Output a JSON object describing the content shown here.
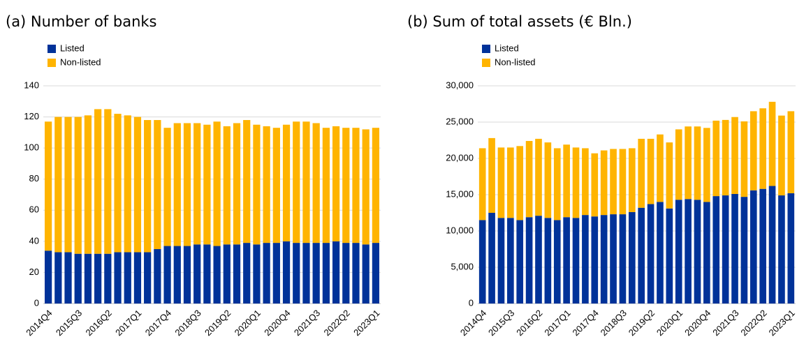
{
  "chart_data": [
    {
      "type": "stacked_bar",
      "title": "(a) Number of banks",
      "categories": [
        "2014Q4",
        null,
        null,
        "2015Q3",
        null,
        null,
        "2016Q2",
        null,
        null,
        "2017Q1",
        null,
        null,
        "2017Q4",
        null,
        null,
        "2018Q3",
        null,
        null,
        "2019Q2",
        null,
        null,
        "2020Q1",
        null,
        null,
        "2020Q4",
        null,
        null,
        "2021Q3",
        null,
        null,
        "2022Q2",
        null,
        null,
        "2023Q1"
      ],
      "series": [
        {
          "name": "Listed",
          "color": "#003299",
          "values": [
            34,
            33,
            33,
            32,
            32,
            32,
            32,
            33,
            33,
            33,
            33,
            35,
            37,
            37,
            37,
            38,
            38,
            37,
            38,
            38,
            39,
            38,
            39,
            39,
            40,
            39,
            39,
            39,
            39,
            40,
            39,
            39,
            38,
            39
          ]
        },
        {
          "name": "Non-listed",
          "color": "#ffb400",
          "values": [
            83,
            87,
            87,
            88,
            89,
            93,
            93,
            89,
            88,
            87,
            85,
            83,
            76,
            79,
            79,
            78,
            77,
            80,
            76,
            78,
            79,
            77,
            75,
            74,
            75,
            78,
            78,
            77,
            74,
            74,
            74,
            74,
            74,
            74
          ]
        }
      ],
      "ylim": [
        0,
        140
      ],
      "yticks": [
        0,
        20,
        40,
        60,
        80,
        100,
        120,
        140
      ],
      "grid": true
    },
    {
      "type": "stacked_bar",
      "title": "(b) Sum of total assets (€ Bln.)",
      "categories": [
        "2014Q4",
        null,
        null,
        "2015Q3",
        null,
        null,
        "2016Q2",
        null,
        null,
        "2017Q1",
        null,
        null,
        "2017Q4",
        null,
        null,
        "2018Q3",
        null,
        null,
        "2019Q2",
        null,
        null,
        "2020Q1",
        null,
        null,
        "2020Q4",
        null,
        null,
        "2021Q3",
        null,
        null,
        "2022Q2",
        null,
        null,
        "2023Q1"
      ],
      "series": [
        {
          "name": "Listed",
          "color": "#003299",
          "values": [
            11500,
            12500,
            11800,
            11800,
            11500,
            11900,
            12100,
            11800,
            11500,
            11900,
            11800,
            12200,
            12000,
            12200,
            12300,
            12300,
            12600,
            13200,
            13700,
            14000,
            13100,
            14300,
            14400,
            14300,
            14000,
            14800,
            14900,
            15100,
            14700,
            15600,
            15800,
            16200,
            14900,
            15200
          ]
        },
        {
          "name": "Non-listed",
          "color": "#ffb400",
          "values": [
            9900,
            10300,
            9700,
            9700,
            10200,
            10500,
            10600,
            10400,
            9900,
            10000,
            9700,
            9200,
            8700,
            8900,
            9000,
            9000,
            8800,
            9500,
            9000,
            9300,
            9100,
            9700,
            10000,
            10100,
            10200,
            10400,
            10400,
            10600,
            10400,
            10900,
            11100,
            11600,
            11000,
            11300
          ]
        }
      ],
      "ylim": [
        0,
        30000
      ],
      "yticks": [
        0,
        {
          "value": 5000,
          "label": "5,000"
        },
        {
          "value": 10000,
          "label": "10,000"
        },
        {
          "value": 15000,
          "label": "15,000"
        },
        {
          "value": 20000,
          "label": "20,000"
        },
        {
          "value": 25000,
          "label": "25,000"
        },
        {
          "value": 30000,
          "label": "30,000"
        }
      ],
      "grid": true
    }
  ]
}
